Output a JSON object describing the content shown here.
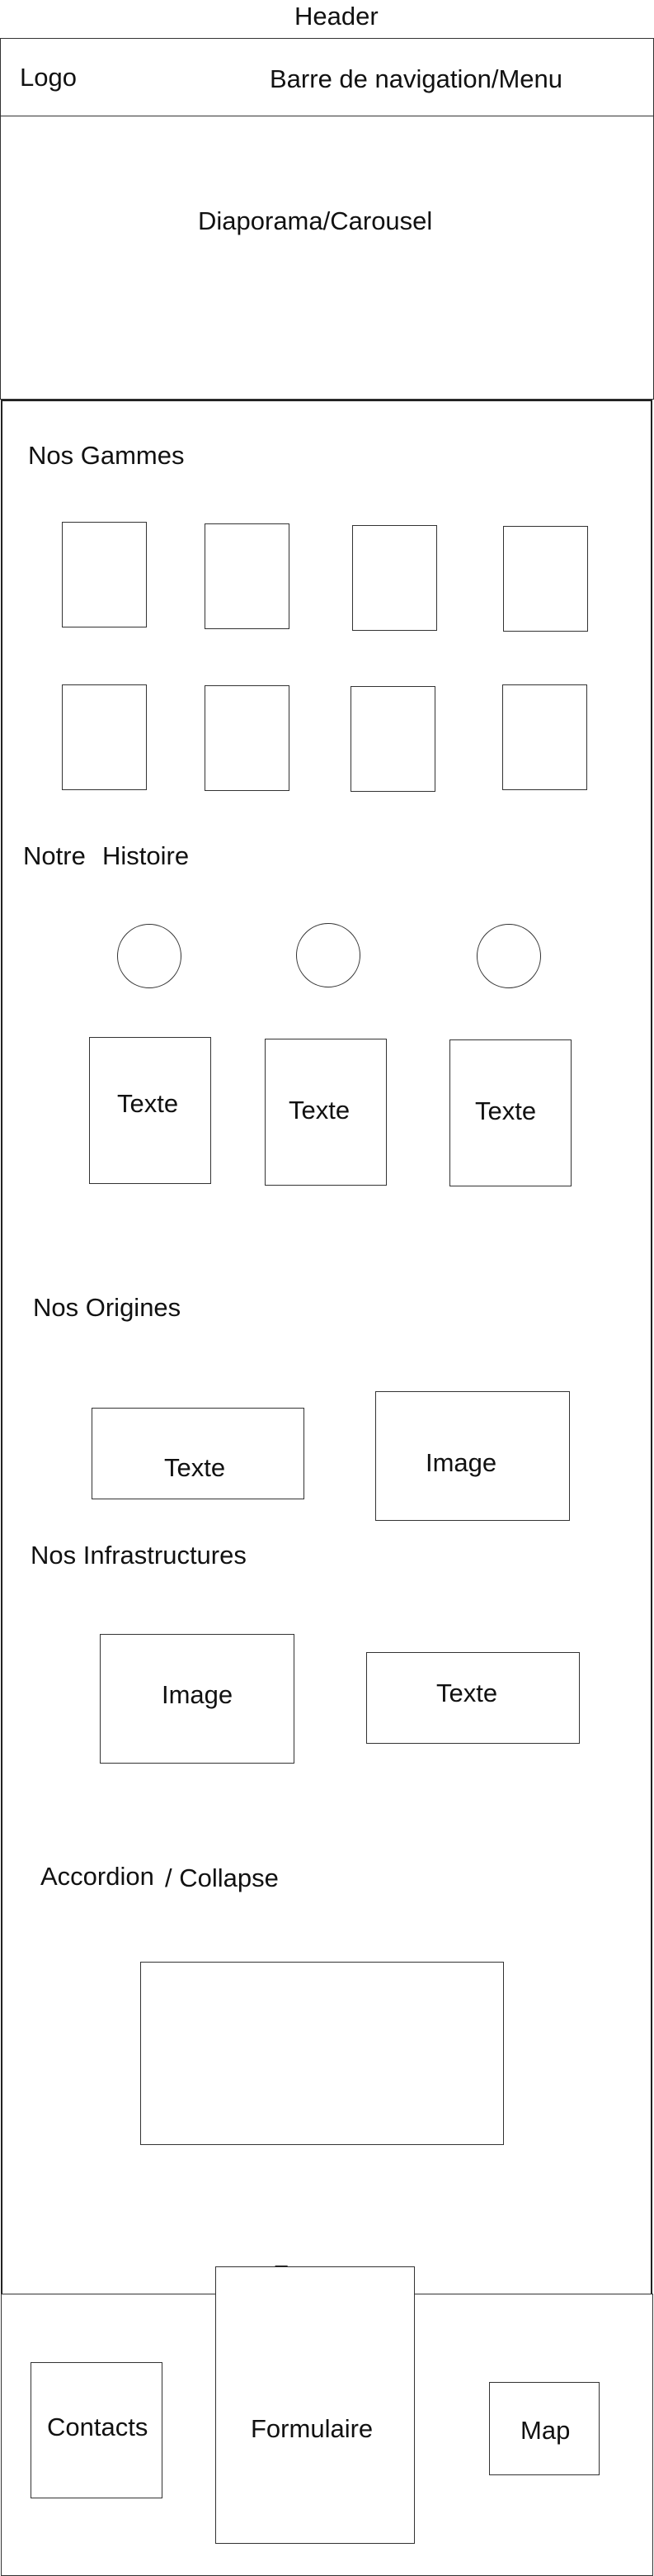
{
  "header": {
    "title": "Header",
    "logo": "Logo",
    "nav": "Barre de navigation/Menu",
    "carousel": "Diaporama/Carousel"
  },
  "gammes": {
    "title": "Nos Gammes"
  },
  "histoire": {
    "title_part1": "Notre",
    "title_part2": "Histoire",
    "texts": [
      "Texte",
      "Texte",
      "Texte"
    ]
  },
  "origines": {
    "title": "Nos Origines",
    "text": "Texte",
    "image": "Image"
  },
  "infrastructures": {
    "title": "Nos Infrastructures",
    "image": "Image",
    "text": "Texte"
  },
  "accordion": {
    "title_part1": "Accordion",
    "title_part2": "/ Collapse"
  },
  "footer": {
    "title": "Footer",
    "contacts": "Contacts",
    "form": "Formulaire",
    "map": "Map"
  }
}
